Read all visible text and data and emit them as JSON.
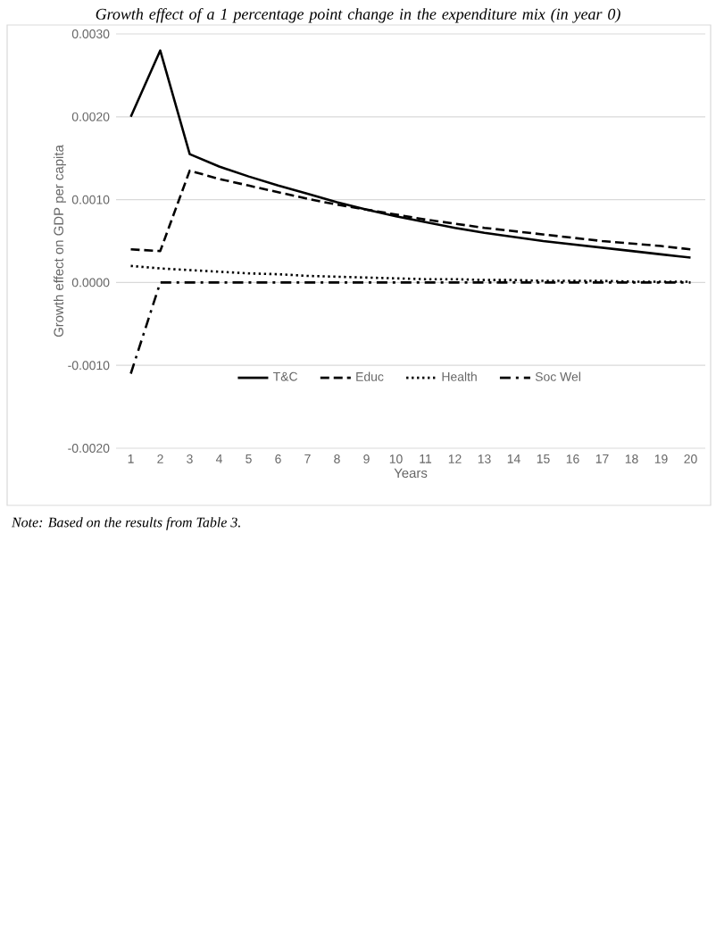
{
  "chart_data": {
    "type": "line",
    "title": "Growth effect of a 1 percentage point change in the expenditure mix (in year 0)",
    "xlabel": "Years",
    "ylabel": "Growth effect on GDP per capita",
    "annotations": [
      "Note: Based on the results from Table 3."
    ],
    "categories": [
      "1",
      "2",
      "3",
      "4",
      "5",
      "6",
      "7",
      "8",
      "9",
      "10",
      "11",
      "12",
      "13",
      "14",
      "15",
      "16",
      "17",
      "18",
      "19",
      "20"
    ],
    "ylim": [
      -0.002,
      0.003
    ],
    "yticks": [
      {
        "value": -0.002,
        "label": "-0.0020"
      },
      {
        "value": -0.001,
        "label": "-0.0010"
      },
      {
        "value": 0,
        "label": "0.0000"
      },
      {
        "value": 0.001,
        "label": "0.0010"
      },
      {
        "value": 0.002,
        "label": "0.0020"
      },
      {
        "value": 0.003,
        "label": "0.0030"
      }
    ],
    "grid": "y",
    "legend": "bottom",
    "marker": "none",
    "series": [
      {
        "name": "T&C",
        "color": "#000000",
        "line_style": "solid",
        "values": [
          0.002,
          0.0028,
          0.00155,
          0.0014,
          0.00128,
          0.00117,
          0.00107,
          0.00097,
          0.00088,
          0.0008,
          0.00073,
          0.00066,
          0.0006,
          0.00055,
          0.0005,
          0.00046,
          0.00042,
          0.00038,
          0.00034,
          0.0003
        ]
      },
      {
        "name": "Educ",
        "color": "#000000",
        "line_style": "dashed",
        "values": [
          0.0004,
          0.00038,
          0.00135,
          0.00125,
          0.00117,
          0.00109,
          0.00101,
          0.00094,
          0.00088,
          0.00082,
          0.00076,
          0.00071,
          0.00066,
          0.00062,
          0.00058,
          0.00054,
          0.0005,
          0.00047,
          0.00044,
          0.0004
        ]
      },
      {
        "name": "Health",
        "color": "#000000",
        "line_style": "dotted",
        "values": [
          0.0002,
          0.00017,
          0.00015,
          0.00013,
          0.00011,
          0.0001,
          8e-05,
          7e-05,
          6e-05,
          5e-05,
          4e-05,
          4e-05,
          3e-05,
          3e-05,
          2e-05,
          2e-05,
          2e-05,
          1e-05,
          1e-05,
          1e-05
        ]
      },
      {
        "name": "Soc Wel",
        "color": "#000000",
        "line_style": "dashdot",
        "values": [
          -0.0011,
          0,
          0,
          0,
          0,
          0,
          0,
          0,
          0,
          0,
          0,
          0,
          0,
          0,
          0,
          0,
          0,
          0,
          0,
          0
        ]
      }
    ]
  }
}
